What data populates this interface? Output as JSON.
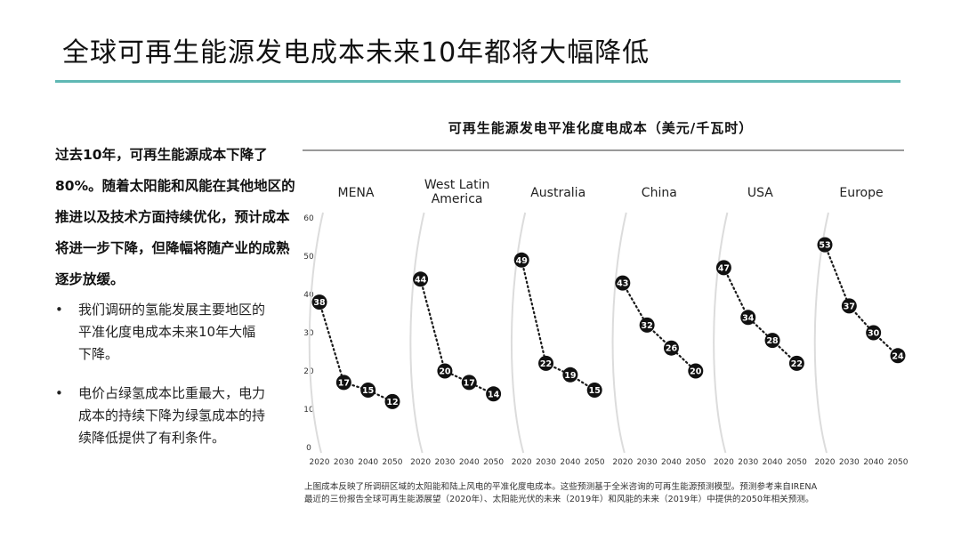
{
  "slide": {
    "title": "全球可再生能源发电成本未来10年都将大幅降低",
    "accent_color": "#5fb8b4"
  },
  "left_panel": {
    "lead_text": "过去10年，可再生能源成本下降了80%。随着太阳能和风能在其他地区的推进以及技术方面持续优化，预计成本将进一步下降，但降幅将随产业的成熟逐步放缓。",
    "bullets": [
      "我们调研的氢能发展主要地区的平准化度电成本未来10年大幅下降。",
      "电价占绿氢成本比重最大，电力成本的持续下降为绿氢成本的持续降低提供了有利条件。"
    ]
  },
  "chart_data": {
    "type": "line",
    "title": "可再生能源发电平准化度电成本（美元/千瓦时）",
    "xlabel": "",
    "ylabel": "",
    "ylim": [
      0,
      60
    ],
    "yticks": [
      0,
      10,
      20,
      30,
      40,
      50,
      60
    ],
    "x": [
      2020,
      2030,
      2040,
      2050
    ],
    "grid": false,
    "legend": "none",
    "series": [
      {
        "name": "MENA",
        "values": [
          38,
          17,
          15,
          12
        ]
      },
      {
        "name": "West Latin America",
        "values": [
          44,
          20,
          17,
          14
        ]
      },
      {
        "name": "Australia",
        "values": [
          49,
          22,
          19,
          15
        ]
      },
      {
        "name": "China",
        "values": [
          43,
          32,
          26,
          20
        ]
      },
      {
        "name": "USA",
        "values": [
          47,
          34,
          28,
          22
        ]
      },
      {
        "name": "Europe",
        "values": [
          53,
          37,
          30,
          24
        ]
      }
    ]
  },
  "footnote": [
    "上图成本反映了所调研区域的太阳能和陆上风电的平准化度电成本。这些预测基于全米咨询的可再生能源预测模型。预测参考来自IRENA",
    "最近的三份报告全球可再生能源展望（2020年）、太阳能光伏的未来（2019年）和风能的未来（2019年）中提供的2050年相关预测。"
  ]
}
